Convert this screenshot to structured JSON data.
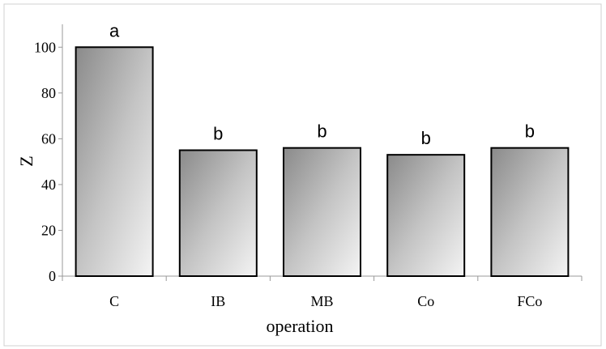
{
  "chart_data": {
    "type": "bar",
    "title": "",
    "xlabel": "operation",
    "ylabel": "Z",
    "categories": [
      "C",
      "IB",
      "MB",
      "Co",
      "FCo"
    ],
    "values": [
      100,
      55,
      56,
      53,
      56
    ],
    "significance_labels": [
      "a",
      "b",
      "b",
      "b",
      "b"
    ],
    "ylim": [
      0,
      110
    ],
    "yticks": [
      0,
      20,
      40,
      60,
      80,
      100
    ],
    "grid": false,
    "legend": "none"
  }
}
